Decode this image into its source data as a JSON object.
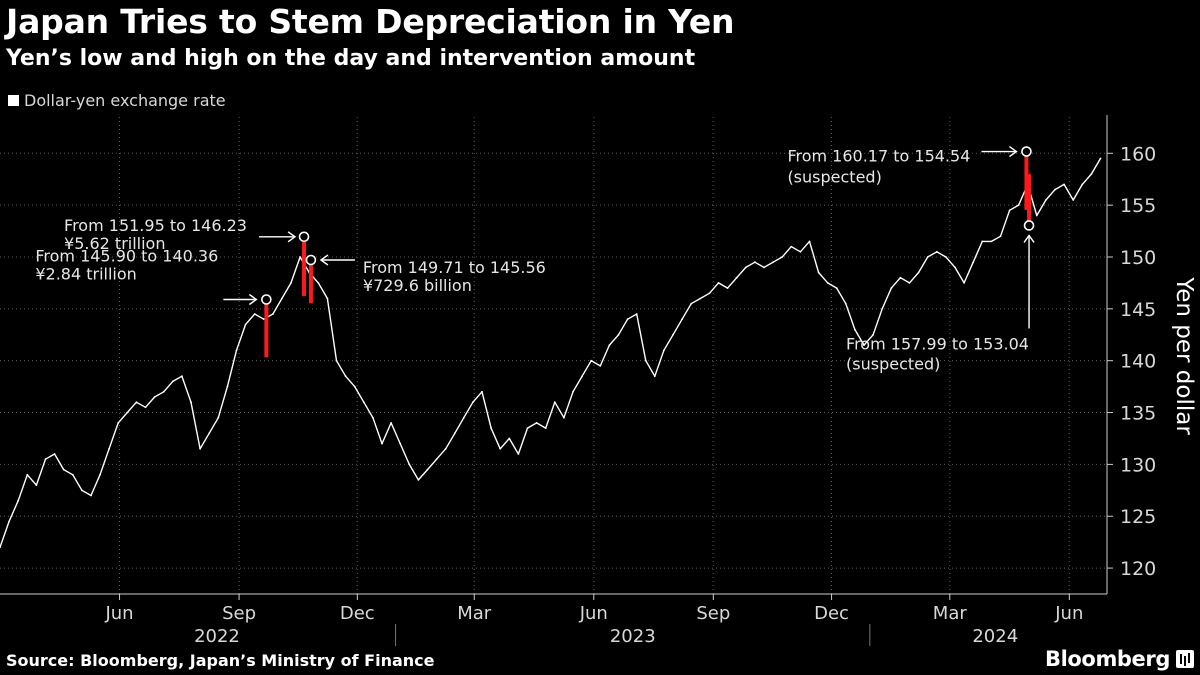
{
  "header": {
    "title": "Japan Tries to Stem Depreciation in Yen",
    "subtitle": "Yen’s low and high on the day and intervention amount",
    "legend_label": "Dollar-yen exchange rate"
  },
  "footer": {
    "source": "Source: Bloomberg, Japan’s Ministry of Finance",
    "brand": "Bloomberg"
  },
  "colors": {
    "background": "#000000",
    "line": "#ffffff",
    "intervention": "#ff1a1a",
    "grid": "#5a5a5a",
    "axis_text": "#d8d8d8"
  },
  "chart_data": {
    "type": "line",
    "title": "Japan Tries to Stem Depreciation in Yen",
    "subtitle": "Yen’s low and high on the day and intervention amount",
    "ylabel": "Yen per dollar",
    "xlabel": "",
    "ylim": [
      117.5,
      163.5
    ],
    "yticks": [
      120,
      125,
      130,
      135,
      140,
      145,
      150,
      155,
      160
    ],
    "grid": true,
    "legend": "top-left",
    "x_range": [
      "2022-03-01",
      "2024-06-30"
    ],
    "xticks": [
      {
        "date": "2022-06-01",
        "label": "Jun"
      },
      {
        "date": "2022-09-01",
        "label": "Sep"
      },
      {
        "date": "2022-12-01",
        "label": "Dec"
      },
      {
        "date": "2023-03-01",
        "label": "Mar"
      },
      {
        "date": "2023-06-01",
        "label": "Jun"
      },
      {
        "date": "2023-09-01",
        "label": "Sep"
      },
      {
        "date": "2023-12-01",
        "label": "Dec"
      },
      {
        "date": "2024-03-01",
        "label": "Mar"
      },
      {
        "date": "2024-06-01",
        "label": "Jun"
      }
    ],
    "year_labels": [
      {
        "date": "2022-08-15",
        "label": "2022"
      },
      {
        "date": "2023-07-01",
        "label": "2023"
      },
      {
        "date": "2024-04-05",
        "label": "2024"
      }
    ],
    "year_separators": [
      "2023-01-01",
      "2024-01-01"
    ],
    "series": [
      {
        "name": "Dollar-yen exchange rate",
        "points": [
          [
            "2022-03-01",
            122.0
          ],
          [
            "2022-03-08",
            124.5
          ],
          [
            "2022-03-15",
            126.5
          ],
          [
            "2022-03-22",
            129.0
          ],
          [
            "2022-03-29",
            128.0
          ],
          [
            "2022-04-05",
            130.5
          ],
          [
            "2022-04-12",
            131.0
          ],
          [
            "2022-04-19",
            129.5
          ],
          [
            "2022-04-26",
            129.0
          ],
          [
            "2022-05-03",
            127.5
          ],
          [
            "2022-05-10",
            127.0
          ],
          [
            "2022-05-17",
            129.0
          ],
          [
            "2022-05-24",
            131.5
          ],
          [
            "2022-05-31",
            134.0
          ],
          [
            "2022-06-07",
            135.0
          ],
          [
            "2022-06-14",
            136.0
          ],
          [
            "2022-06-21",
            135.5
          ],
          [
            "2022-06-28",
            136.5
          ],
          [
            "2022-07-05",
            137.0
          ],
          [
            "2022-07-12",
            138.0
          ],
          [
            "2022-07-19",
            138.5
          ],
          [
            "2022-07-26",
            136.0
          ],
          [
            "2022-08-02",
            131.5
          ],
          [
            "2022-08-09",
            133.0
          ],
          [
            "2022-08-16",
            134.5
          ],
          [
            "2022-08-23",
            137.5
          ],
          [
            "2022-08-30",
            141.0
          ],
          [
            "2022-09-06",
            143.5
          ],
          [
            "2022-09-13",
            144.5
          ],
          [
            "2022-09-20",
            144.0
          ],
          [
            "2022-09-27",
            144.5
          ],
          [
            "2022-10-04",
            146.0
          ],
          [
            "2022-10-11",
            147.5
          ],
          [
            "2022-10-18",
            150.0
          ],
          [
            "2022-10-25",
            148.5
          ],
          [
            "2022-11-01",
            147.5
          ],
          [
            "2022-11-08",
            146.0
          ],
          [
            "2022-11-15",
            140.0
          ],
          [
            "2022-11-22",
            138.5
          ],
          [
            "2022-11-29",
            137.5
          ],
          [
            "2022-12-06",
            136.0
          ],
          [
            "2022-12-13",
            134.5
          ],
          [
            "2022-12-20",
            132.0
          ],
          [
            "2022-12-27",
            134.0
          ],
          [
            "2023-01-03",
            132.0
          ],
          [
            "2023-01-10",
            130.0
          ],
          [
            "2023-01-17",
            128.5
          ],
          [
            "2023-01-24",
            129.5
          ],
          [
            "2023-01-31",
            130.5
          ],
          [
            "2023-02-07",
            131.5
          ],
          [
            "2023-02-14",
            133.0
          ],
          [
            "2023-02-21",
            134.5
          ],
          [
            "2023-02-28",
            136.0
          ],
          [
            "2023-03-07",
            137.0
          ],
          [
            "2023-03-14",
            133.5
          ],
          [
            "2023-03-21",
            131.5
          ],
          [
            "2023-03-28",
            132.5
          ],
          [
            "2023-04-04",
            131.0
          ],
          [
            "2023-04-11",
            133.5
          ],
          [
            "2023-04-18",
            134.0
          ],
          [
            "2023-04-25",
            133.5
          ],
          [
            "2023-05-02",
            136.0
          ],
          [
            "2023-05-09",
            134.5
          ],
          [
            "2023-05-16",
            137.0
          ],
          [
            "2023-05-23",
            138.5
          ],
          [
            "2023-05-30",
            140.0
          ],
          [
            "2023-06-06",
            139.5
          ],
          [
            "2023-06-13",
            141.5
          ],
          [
            "2023-06-20",
            142.5
          ],
          [
            "2023-06-27",
            144.0
          ],
          [
            "2023-07-04",
            144.5
          ],
          [
            "2023-07-11",
            140.0
          ],
          [
            "2023-07-18",
            138.5
          ],
          [
            "2023-07-25",
            141.0
          ],
          [
            "2023-08-01",
            142.5
          ],
          [
            "2023-08-08",
            144.0
          ],
          [
            "2023-08-15",
            145.5
          ],
          [
            "2023-08-22",
            146.0
          ],
          [
            "2023-08-29",
            146.5
          ],
          [
            "2023-09-05",
            147.5
          ],
          [
            "2023-09-12",
            147.0
          ],
          [
            "2023-09-19",
            148.0
          ],
          [
            "2023-09-26",
            149.0
          ],
          [
            "2023-10-03",
            149.5
          ],
          [
            "2023-10-10",
            149.0
          ],
          [
            "2023-10-17",
            149.5
          ],
          [
            "2023-10-24",
            150.0
          ],
          [
            "2023-10-31",
            151.0
          ],
          [
            "2023-11-07",
            150.5
          ],
          [
            "2023-11-14",
            151.5
          ],
          [
            "2023-11-21",
            148.5
          ],
          [
            "2023-11-28",
            147.5
          ],
          [
            "2023-12-05",
            147.0
          ],
          [
            "2023-12-12",
            145.5
          ],
          [
            "2023-12-19",
            143.0
          ],
          [
            "2023-12-26",
            141.5
          ],
          [
            "2024-01-02",
            142.5
          ],
          [
            "2024-01-09",
            145.0
          ],
          [
            "2024-01-16",
            147.0
          ],
          [
            "2024-01-23",
            148.0
          ],
          [
            "2024-01-30",
            147.5
          ],
          [
            "2024-02-06",
            148.5
          ],
          [
            "2024-02-13",
            150.0
          ],
          [
            "2024-02-20",
            150.5
          ],
          [
            "2024-02-27",
            150.0
          ],
          [
            "2024-03-05",
            149.0
          ],
          [
            "2024-03-12",
            147.5
          ],
          [
            "2024-03-19",
            149.5
          ],
          [
            "2024-03-26",
            151.5
          ],
          [
            "2024-04-02",
            151.5
          ],
          [
            "2024-04-09",
            152.0
          ],
          [
            "2024-04-16",
            154.5
          ],
          [
            "2024-04-23",
            155.0
          ],
          [
            "2024-04-30",
            157.0
          ],
          [
            "2024-05-07",
            154.0
          ],
          [
            "2024-05-14",
            155.5
          ],
          [
            "2024-05-21",
            156.5
          ],
          [
            "2024-05-28",
            157.0
          ],
          [
            "2024-06-04",
            155.5
          ],
          [
            "2024-06-11",
            157.0
          ],
          [
            "2024-06-18",
            158.0
          ],
          [
            "2024-06-25",
            159.5
          ]
        ]
      }
    ],
    "interventions": [
      {
        "date": "2022-09-22",
        "high": 145.9,
        "low": 140.36,
        "label": "From 145.90 to 140.36",
        "amount": "¥2.84 trillion"
      },
      {
        "date": "2022-10-21",
        "high": 151.95,
        "low": 146.23,
        "label": "From 151.95 to 146.23",
        "amount": "¥5.62 trillion"
      },
      {
        "date": "2022-10-24",
        "high": 149.71,
        "low": 145.56,
        "label": "From 149.71 to 145.56",
        "amount": "¥729.6 billion"
      },
      {
        "date": "2024-04-29",
        "high": 160.17,
        "low": 154.54,
        "label": "From 160.17 to 154.54",
        "amount": "(suspected)"
      },
      {
        "date": "2024-05-01",
        "high": 157.99,
        "low": 153.04,
        "label": "From 157.99 to 153.04",
        "amount": "(suspected)"
      }
    ]
  }
}
